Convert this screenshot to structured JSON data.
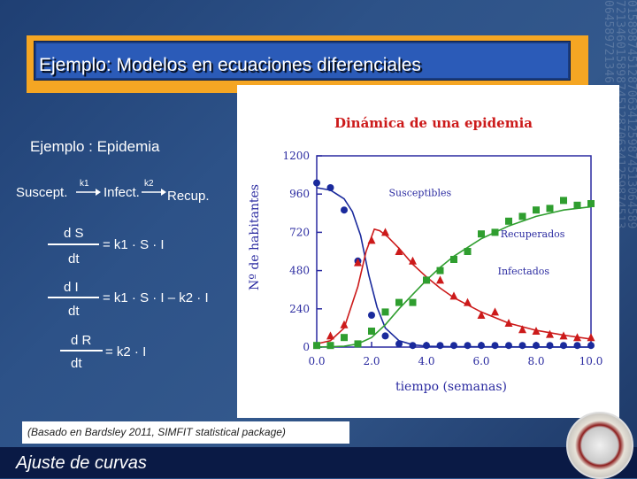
{
  "slide": {
    "title": "Ejemplo: Modelos en ecuaciones diferenciales",
    "subtitle": "Ejemplo : Epidemia",
    "scheme": {
      "s": "Suscept.",
      "i": "Infect.",
      "r": "Recup.",
      "k1": "k1",
      "k2": "k2"
    },
    "eq1": {
      "num": "d S",
      "den": "dt",
      "rhs": "= k1 · S · I"
    },
    "eq2": {
      "num": "d I",
      "den": "dt",
      "rhs": "= k1 · S · I – k2 · I"
    },
    "eq3": {
      "num": "d R",
      "den": "dt",
      "rhs": "= k2 · I"
    },
    "note": "(Basado en Bardsley 2011, SIMFIT statistical package)",
    "footer": "Ajuste de curvas"
  },
  "chart_data": {
    "type": "scatter",
    "title": "Dinámica de una epidemia",
    "xlabel": "tiempo (semanas)",
    "ylabel": "Nº de habitantes",
    "xlim": [
      0,
      10
    ],
    "ylim": [
      0,
      1200
    ],
    "xticks": [
      "0.0",
      "2.0",
      "4.0",
      "6.0",
      "8.0",
      "10.0"
    ],
    "yticks": [
      "0",
      "240",
      "480",
      "720",
      "960",
      "1200"
    ],
    "series": [
      {
        "name": "Susceptibles",
        "color": "#1a2a9c",
        "marker": "circle",
        "points": [
          [
            0.0,
            1030
          ],
          [
            0.5,
            1000
          ],
          [
            1.0,
            860
          ],
          [
            1.5,
            540
          ],
          [
            2.0,
            200
          ],
          [
            2.5,
            70
          ],
          [
            3.0,
            20
          ],
          [
            3.5,
            10
          ],
          [
            4.0,
            10
          ],
          [
            4.5,
            10
          ],
          [
            5.0,
            10
          ],
          [
            5.5,
            10
          ],
          [
            6.0,
            10
          ],
          [
            6.5,
            10
          ],
          [
            7.0,
            10
          ],
          [
            7.5,
            10
          ],
          [
            8.0,
            10
          ],
          [
            8.5,
            10
          ],
          [
            9.0,
            10
          ],
          [
            9.5,
            10
          ],
          [
            10.0,
            10
          ]
        ],
        "curve": [
          [
            0.0,
            1000
          ],
          [
            0.5,
            985
          ],
          [
            1.0,
            930
          ],
          [
            1.3,
            850
          ],
          [
            1.6,
            700
          ],
          [
            1.9,
            450
          ],
          [
            2.2,
            250
          ],
          [
            2.5,
            120
          ],
          [
            3.0,
            40
          ],
          [
            3.5,
            15
          ],
          [
            4.0,
            5
          ],
          [
            5.0,
            2
          ],
          [
            10.0,
            0
          ]
        ]
      },
      {
        "name": "Infectados",
        "color": "#cc1a1a",
        "marker": "triangle",
        "points": [
          [
            0.5,
            70
          ],
          [
            1.0,
            140
          ],
          [
            1.5,
            530
          ],
          [
            2.0,
            670
          ],
          [
            2.5,
            720
          ],
          [
            3.0,
            600
          ],
          [
            3.5,
            540
          ],
          [
            4.0,
            420
          ],
          [
            4.5,
            420
          ],
          [
            5.0,
            320
          ],
          [
            5.5,
            280
          ],
          [
            6.0,
            200
          ],
          [
            6.5,
            220
          ],
          [
            7.0,
            150
          ],
          [
            7.5,
            110
          ],
          [
            8.0,
            100
          ],
          [
            8.5,
            80
          ],
          [
            9.0,
            70
          ],
          [
            9.5,
            60
          ],
          [
            10.0,
            60
          ]
        ],
        "curve": [
          [
            0.0,
            20
          ],
          [
            0.5,
            40
          ],
          [
            1.0,
            120
          ],
          [
            1.5,
            380
          ],
          [
            1.8,
            600
          ],
          [
            2.1,
            740
          ],
          [
            2.3,
            730
          ],
          [
            2.6,
            690
          ],
          [
            3.0,
            620
          ],
          [
            3.5,
            520
          ],
          [
            4.0,
            440
          ],
          [
            4.5,
            370
          ],
          [
            5.0,
            310
          ],
          [
            6.0,
            220
          ],
          [
            7.0,
            150
          ],
          [
            8.0,
            105
          ],
          [
            9.0,
            75
          ],
          [
            10.0,
            50
          ]
        ]
      },
      {
        "name": "Recuperados",
        "color": "#2f9e2f",
        "marker": "square",
        "points": [
          [
            0.0,
            10
          ],
          [
            0.5,
            10
          ],
          [
            1.0,
            60
          ],
          [
            1.5,
            20
          ],
          [
            2.0,
            100
          ],
          [
            2.5,
            220
          ],
          [
            3.0,
            280
          ],
          [
            3.5,
            280
          ],
          [
            4.0,
            420
          ],
          [
            4.5,
            480
          ],
          [
            5.0,
            550
          ],
          [
            5.5,
            600
          ],
          [
            6.0,
            710
          ],
          [
            6.5,
            720
          ],
          [
            7.0,
            790
          ],
          [
            7.5,
            820
          ],
          [
            8.0,
            860
          ],
          [
            8.5,
            870
          ],
          [
            9.0,
            920
          ],
          [
            9.5,
            890
          ],
          [
            10.0,
            900
          ]
        ],
        "curve": [
          [
            0.0,
            0
          ],
          [
            1.0,
            5
          ],
          [
            1.5,
            20
          ],
          [
            2.0,
            60
          ],
          [
            2.5,
            140
          ],
          [
            3.0,
            240
          ],
          [
            3.5,
            330
          ],
          [
            4.0,
            420
          ],
          [
            4.5,
            500
          ],
          [
            5.0,
            570
          ],
          [
            6.0,
            680
          ],
          [
            7.0,
            760
          ],
          [
            8.0,
            820
          ],
          [
            9.0,
            860
          ],
          [
            10.0,
            880
          ]
        ]
      }
    ]
  }
}
